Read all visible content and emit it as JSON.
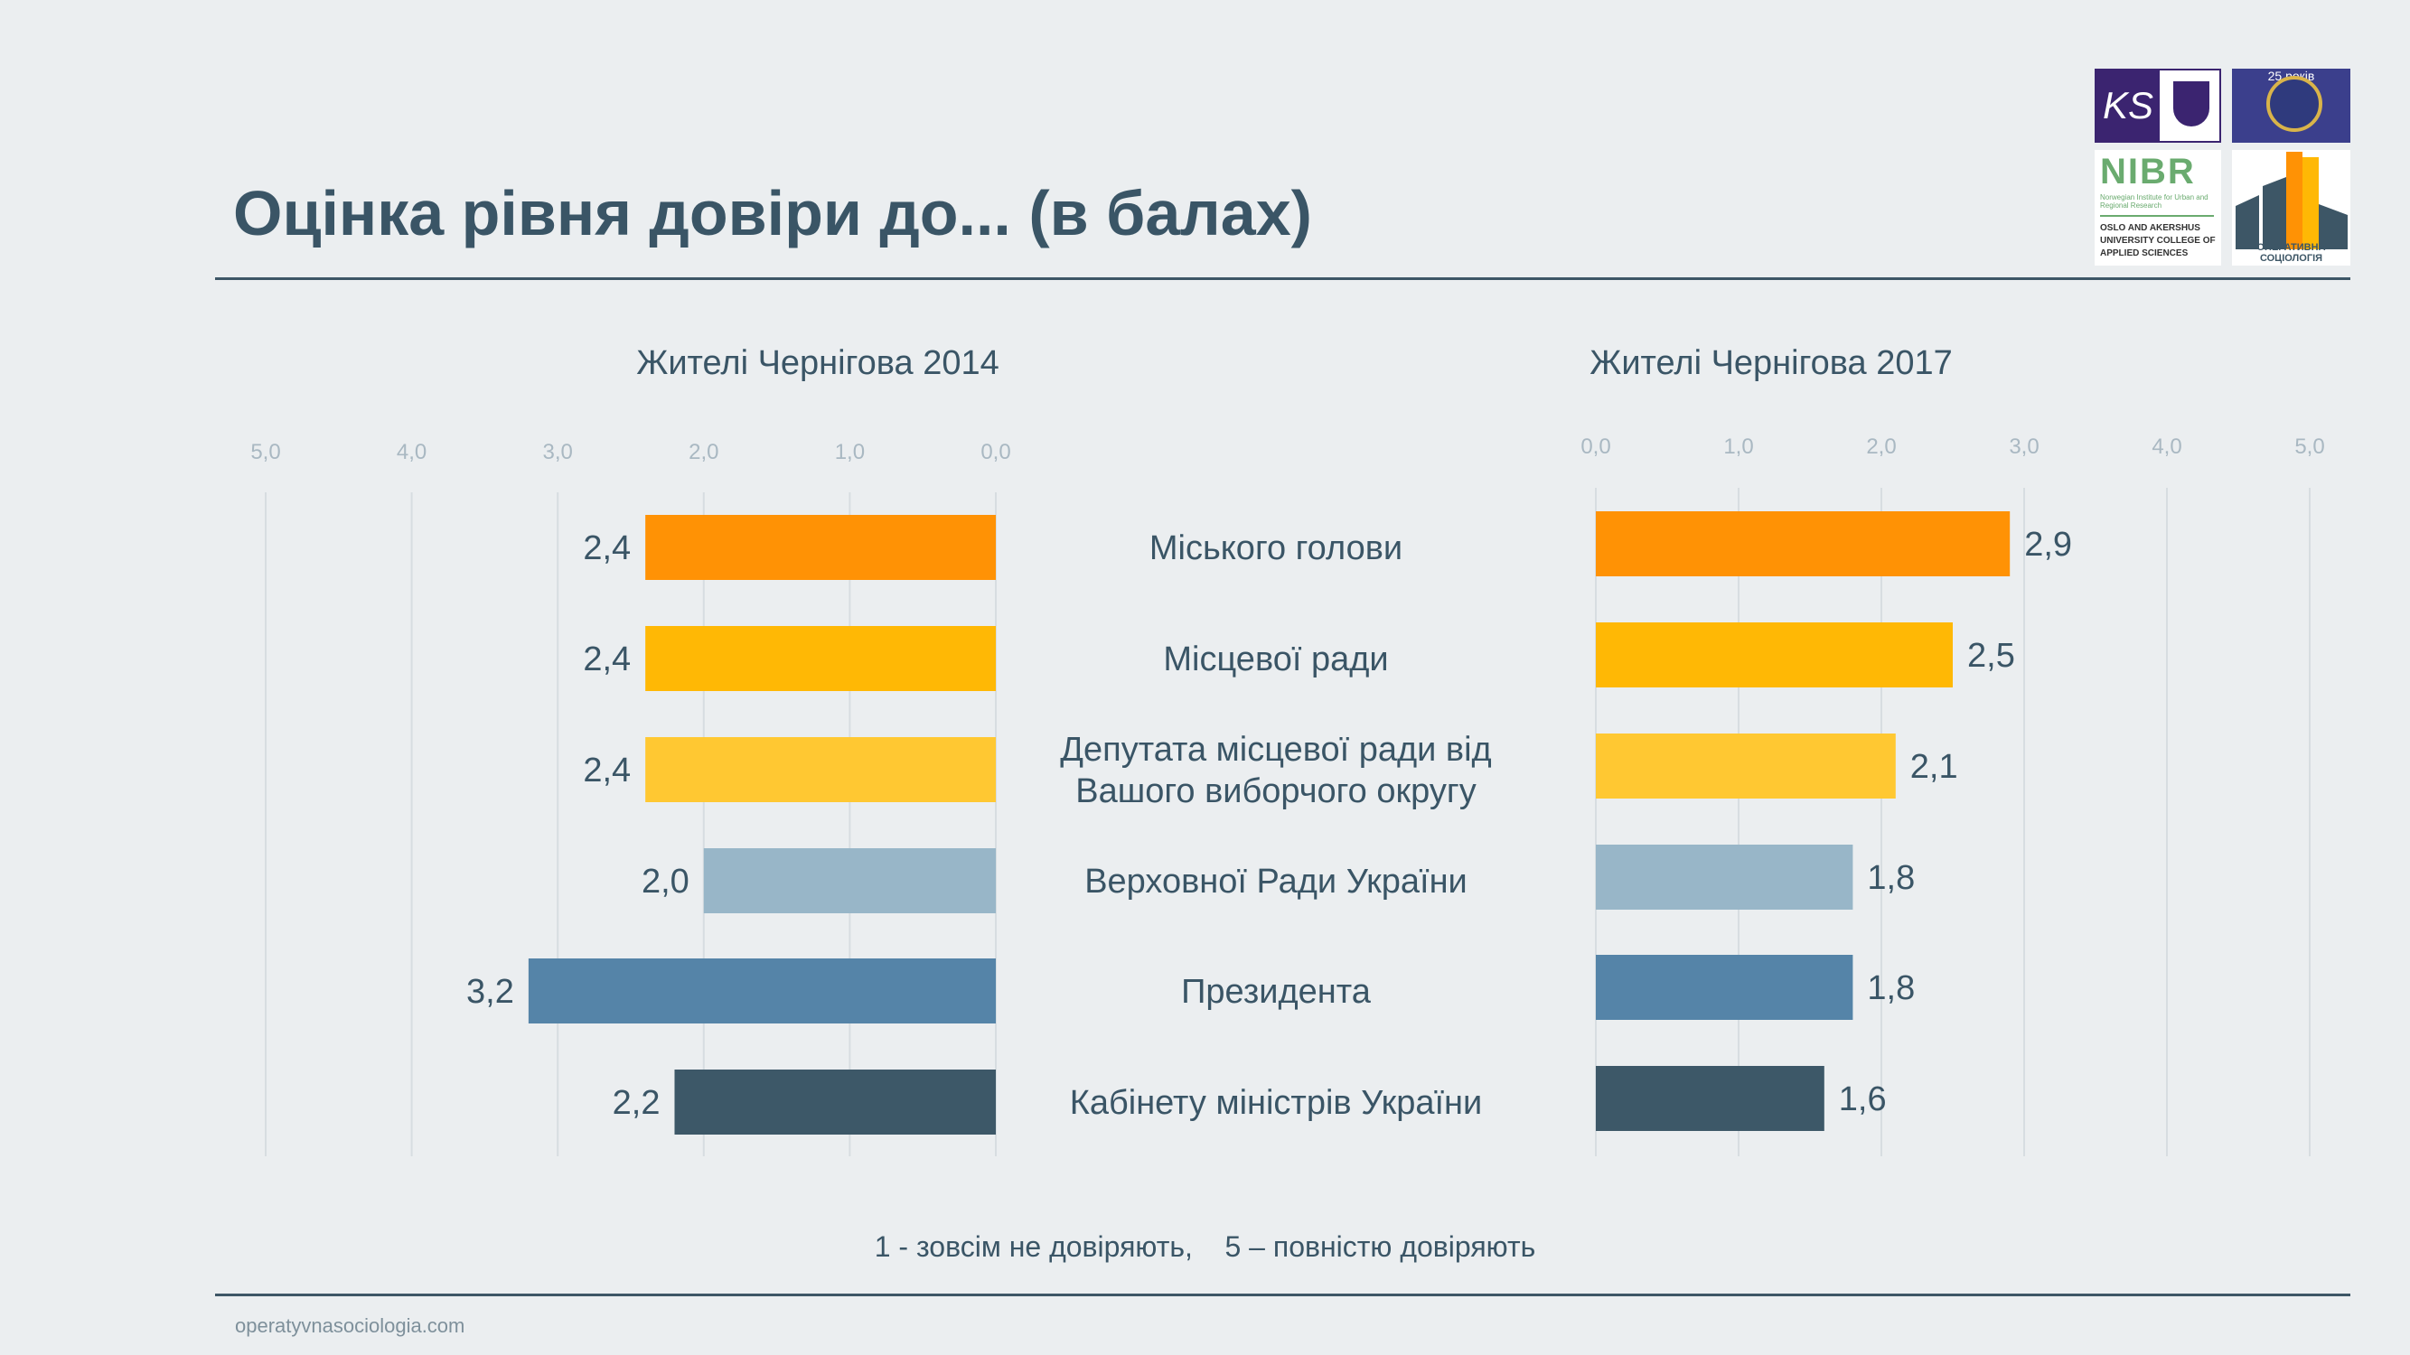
{
  "title": "Оцінка рівня довіри до... (в балах)",
  "footer": "operatyvnasociologia.com",
  "note": "1 - зовсім не довіряють,    5 – повністю довіряють",
  "logos": {
    "ks_text": "KS",
    "seal_text": "25 років",
    "nibr_text": "NIBR",
    "nibr_subtitle": "Norwegian Institute for Urban and Regional Research",
    "oslo_text": "OSLO AND AKERSHUS UNIVERSITY COLLEGE OF APPLIED SCIENCES",
    "opsoc_text": "ОПЕРАТИВНА СОЦІОЛОГІЯ"
  },
  "chart_data": [
    {
      "type": "bar",
      "orientation": "horizontal",
      "direction": "reversed",
      "title": "Жителі Чернігова 2014",
      "categories": [
        "Міського голови",
        "Місцевої ради",
        "Депутата місцевої ради від Вашого виборчого округу",
        "Верховної Ради України",
        "Президента",
        "Кабінету міністрів України"
      ],
      "values": [
        2.4,
        2.4,
        2.4,
        2.0,
        3.2,
        2.2
      ],
      "labels": [
        "2,4",
        "2,4",
        "2,4",
        "2,0",
        "3,2",
        "2,2"
      ],
      "ticks": [
        "5,0",
        "4,0",
        "3,0",
        "2,0",
        "1,0",
        "0,0"
      ],
      "xlim": [
        0,
        5
      ],
      "grid": true
    },
    {
      "type": "bar",
      "orientation": "horizontal",
      "title": "Жителі Чернігова 2017",
      "categories": [
        "Міського голови",
        "Місцевої ради",
        "Депутата місцевої ради від Вашого виборчого округу",
        "Верховної Ради України",
        "Президента",
        "Кабінету міністрів України"
      ],
      "values": [
        2.9,
        2.5,
        2.1,
        1.8,
        1.8,
        1.6
      ],
      "labels": [
        "2,9",
        "2,5",
        "2,1",
        "1,8",
        "1,8",
        "1,6"
      ],
      "ticks": [
        "0,0",
        "1,0",
        "2,0",
        "3,0",
        "4,0",
        "5,0"
      ],
      "xlim": [
        0,
        5
      ],
      "grid": true
    }
  ],
  "category_labels": [
    [
      "Міського голови"
    ],
    [
      "Місцевої ради"
    ],
    [
      "Депутата місцевої ради від",
      "Вашого виборчого округу"
    ],
    [
      "Верховної Ради України"
    ],
    [
      "Президента"
    ],
    [
      "Кабінету міністрів України"
    ]
  ],
  "bar_colors": [
    "#ff9205",
    "#ffb805",
    "#ffc832",
    "#98b6c8",
    "#5584a8",
    "#3d5868"
  ],
  "colors": {
    "text": "#3a5566",
    "tick": "#a9b8c2",
    "grid": "#d7dde1",
    "rule": "#3d5666"
  }
}
